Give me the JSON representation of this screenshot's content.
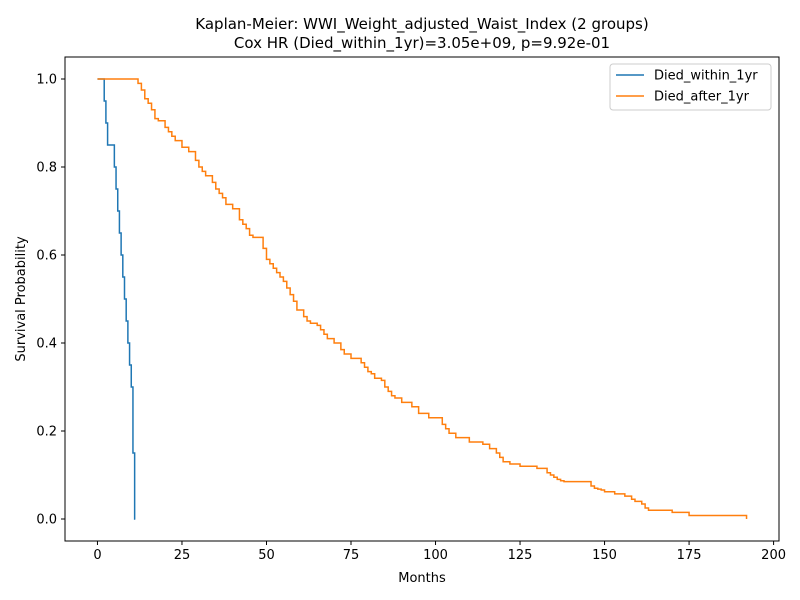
{
  "chart_data": {
    "type": "line",
    "title": "Kaplan-Meier: WWI_Weight_adjusted_Waist_Index (2 groups)",
    "subtitle": "Cox HR (Died_within_1yr)=3.05e+09, p=9.92e-01",
    "xlabel": "Months",
    "ylabel": "Survival Probability",
    "xlim": [
      -9.6,
      201.6
    ],
    "ylim": [
      -0.05,
      1.05
    ],
    "xticks": [
      0,
      25,
      50,
      75,
      100,
      125,
      150,
      175,
      200
    ],
    "yticks": [
      0.0,
      0.2,
      0.4,
      0.6,
      0.8,
      1.0
    ],
    "xtick_labels": [
      "0",
      "25",
      "50",
      "75",
      "100",
      "125",
      "150",
      "175",
      "200"
    ],
    "ytick_labels": [
      "0.0",
      "0.2",
      "0.4",
      "0.6",
      "0.8",
      "1.0"
    ],
    "grid": false,
    "legend_position": "top-right",
    "series": [
      {
        "name": "Died_within_1yr",
        "color": "#1f77b4",
        "step": "post",
        "x": [
          0,
          2,
          2.5,
          3,
          5,
          5.5,
          6,
          6.5,
          7,
          7.5,
          8,
          8.5,
          9,
          9.5,
          10,
          10.5,
          11,
          11.2
        ],
        "y": [
          1.0,
          0.95,
          0.9,
          0.85,
          0.8,
          0.75,
          0.7,
          0.65,
          0.6,
          0.55,
          0.5,
          0.45,
          0.4,
          0.35,
          0.3,
          0.15,
          0.0,
          0.0
        ]
      },
      {
        "name": "Died_after_1yr",
        "color": "#ff7f0e",
        "step": "post",
        "x": [
          0,
          12,
          13,
          14,
          15,
          16,
          17,
          18,
          20,
          21,
          22,
          23,
          25,
          27,
          29,
          30,
          31,
          32,
          34,
          35,
          36,
          37,
          38,
          40,
          42,
          43,
          44,
          45,
          46,
          49,
          50,
          51,
          52,
          53,
          54,
          55,
          56,
          57,
          58,
          59,
          61,
          62,
          63,
          65,
          66,
          67,
          68,
          70,
          72,
          73,
          75,
          78,
          79,
          80,
          81,
          82,
          84,
          85,
          86,
          87,
          88,
          90,
          93,
          95,
          98,
          102,
          103,
          104,
          106,
          110,
          114,
          116,
          118,
          119,
          120,
          122,
          125,
          130,
          133,
          134,
          135,
          136,
          137,
          138,
          140,
          146,
          147,
          148,
          149,
          150,
          153,
          156,
          158,
          159,
          161,
          162,
          163,
          170,
          175,
          192
        ],
        "y": [
          1.0,
          0.99,
          0.975,
          0.955,
          0.945,
          0.93,
          0.91,
          0.905,
          0.89,
          0.88,
          0.87,
          0.86,
          0.845,
          0.835,
          0.815,
          0.8,
          0.79,
          0.78,
          0.765,
          0.75,
          0.74,
          0.73,
          0.715,
          0.705,
          0.68,
          0.67,
          0.66,
          0.645,
          0.64,
          0.615,
          0.59,
          0.58,
          0.57,
          0.56,
          0.55,
          0.54,
          0.525,
          0.51,
          0.495,
          0.475,
          0.46,
          0.45,
          0.445,
          0.44,
          0.43,
          0.42,
          0.41,
          0.4,
          0.385,
          0.375,
          0.365,
          0.355,
          0.345,
          0.335,
          0.33,
          0.32,
          0.315,
          0.3,
          0.29,
          0.28,
          0.275,
          0.265,
          0.255,
          0.24,
          0.23,
          0.215,
          0.205,
          0.195,
          0.185,
          0.175,
          0.17,
          0.16,
          0.15,
          0.14,
          0.13,
          0.125,
          0.12,
          0.115,
          0.105,
          0.1,
          0.095,
          0.09,
          0.087,
          0.085,
          0.085,
          0.075,
          0.07,
          0.068,
          0.066,
          0.062,
          0.057,
          0.052,
          0.045,
          0.04,
          0.034,
          0.025,
          0.02,
          0.015,
          0.008,
          0.0
        ]
      }
    ]
  }
}
